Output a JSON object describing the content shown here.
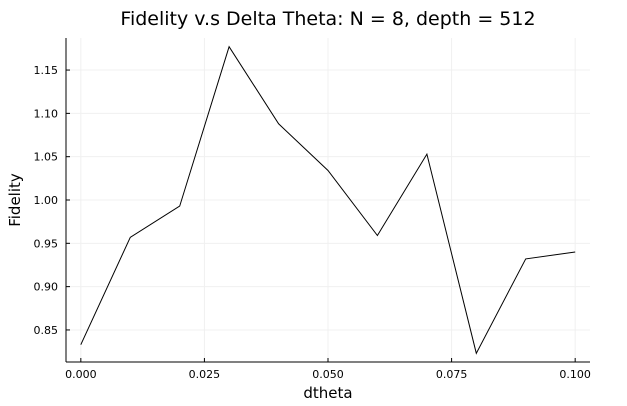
{
  "chart_data": {
    "type": "line",
    "title": "Fidelity v.s Delta Theta: N = 8, depth = 512",
    "xlabel": "dtheta",
    "ylabel": "Fidelity",
    "xlim": [
      -0.003,
      0.103
    ],
    "ylim": [
      0.813,
      1.187
    ],
    "x_ticks": [
      0.0,
      0.025,
      0.05,
      0.075,
      0.1
    ],
    "x_tick_labels": [
      "0.000",
      "0.025",
      "0.050",
      "0.075",
      "0.100"
    ],
    "y_ticks": [
      0.85,
      0.9,
      0.95,
      1.0,
      1.05,
      1.1,
      1.15
    ],
    "y_tick_labels": [
      "0.85",
      "0.90",
      "0.95",
      "1.00",
      "1.05",
      "1.10",
      "1.15"
    ],
    "grid": true,
    "legend": "none",
    "line_color": "#000000",
    "grid_color": "#f0f0f0",
    "series": [
      {
        "x": [
          0.0,
          0.01,
          0.02,
          0.03,
          0.04,
          0.05,
          0.06,
          0.07,
          0.08,
          0.09,
          0.1
        ],
        "y": [
          0.833,
          0.957,
          0.993,
          1.177,
          1.088,
          1.034,
          0.959,
          1.053,
          0.823,
          0.932,
          0.94
        ]
      }
    ]
  }
}
